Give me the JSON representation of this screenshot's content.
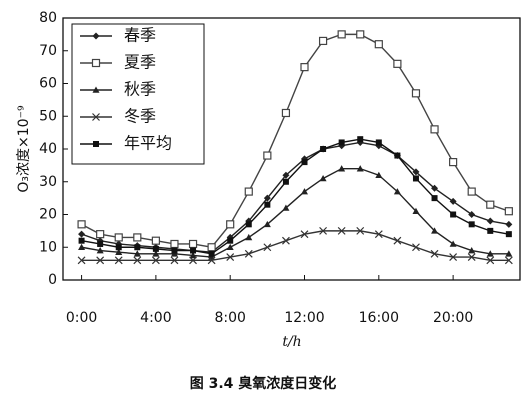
{
  "chart_data": {
    "type": "line",
    "caption": "图 3.4  臭氧浓度日变化",
    "xlabel": "t/h",
    "ylabel": "O₃浓度×10⁻⁹",
    "x": [
      0,
      1,
      2,
      3,
      4,
      5,
      6,
      7,
      8,
      9,
      10,
      11,
      12,
      13,
      14,
      15,
      16,
      17,
      18,
      19,
      20,
      21,
      22,
      23
    ],
    "xlim": [
      -1,
      23.6
    ],
    "xticks": [
      {
        "value": 0,
        "label": "0:00"
      },
      {
        "value": 4,
        "label": "4:00"
      },
      {
        "value": 8,
        "label": "8:00"
      },
      {
        "value": 12,
        "label": "12:00"
      },
      {
        "value": 16,
        "label": "16:00"
      },
      {
        "value": 20,
        "label": "20:00"
      }
    ],
    "ylim": [
      0,
      80
    ],
    "yticks": [
      0,
      10,
      20,
      30,
      40,
      50,
      60,
      70,
      80
    ],
    "legend": "upper-left",
    "series": [
      {
        "name": "春季",
        "color": "#222",
        "marker": "diamond",
        "values": [
          14,
          12,
          11,
          10.5,
          10,
          9.5,
          9,
          8.5,
          13,
          18,
          25,
          32,
          37,
          40,
          41,
          42,
          41,
          38,
          33,
          28,
          24,
          20,
          18,
          17
        ]
      },
      {
        "name": "夏季",
        "color": "#444",
        "marker": "square-open",
        "values": [
          17,
          14,
          13,
          13,
          12,
          11,
          11,
          10,
          17,
          27,
          38,
          51,
          65,
          73,
          75,
          75,
          72,
          66,
          57,
          46,
          36,
          27,
          23,
          21
        ]
      },
      {
        "name": "秋季",
        "color": "#222",
        "marker": "triangle",
        "values": [
          10,
          9,
          8.5,
          8,
          8,
          8,
          7.5,
          7,
          10,
          13,
          17,
          22,
          27,
          31,
          34,
          34,
          32,
          27,
          21,
          15,
          11,
          9,
          8,
          8
        ]
      },
      {
        "name": "冬季",
        "color": "#333",
        "marker": "cross",
        "values": [
          6,
          6,
          6,
          6,
          6,
          6,
          6,
          6,
          7,
          8,
          10,
          12,
          14,
          15,
          15,
          15,
          14,
          12,
          10,
          8,
          7,
          7,
          6,
          6
        ]
      },
      {
        "name": "年平均",
        "color": "#111",
        "marker": "square",
        "values": [
          12,
          11,
          10,
          10,
          9.5,
          9,
          9,
          8,
          12,
          17,
          23,
          30,
          36,
          40,
          42,
          43,
          42,
          38,
          31,
          25,
          20,
          17,
          15,
          14
        ]
      }
    ]
  }
}
